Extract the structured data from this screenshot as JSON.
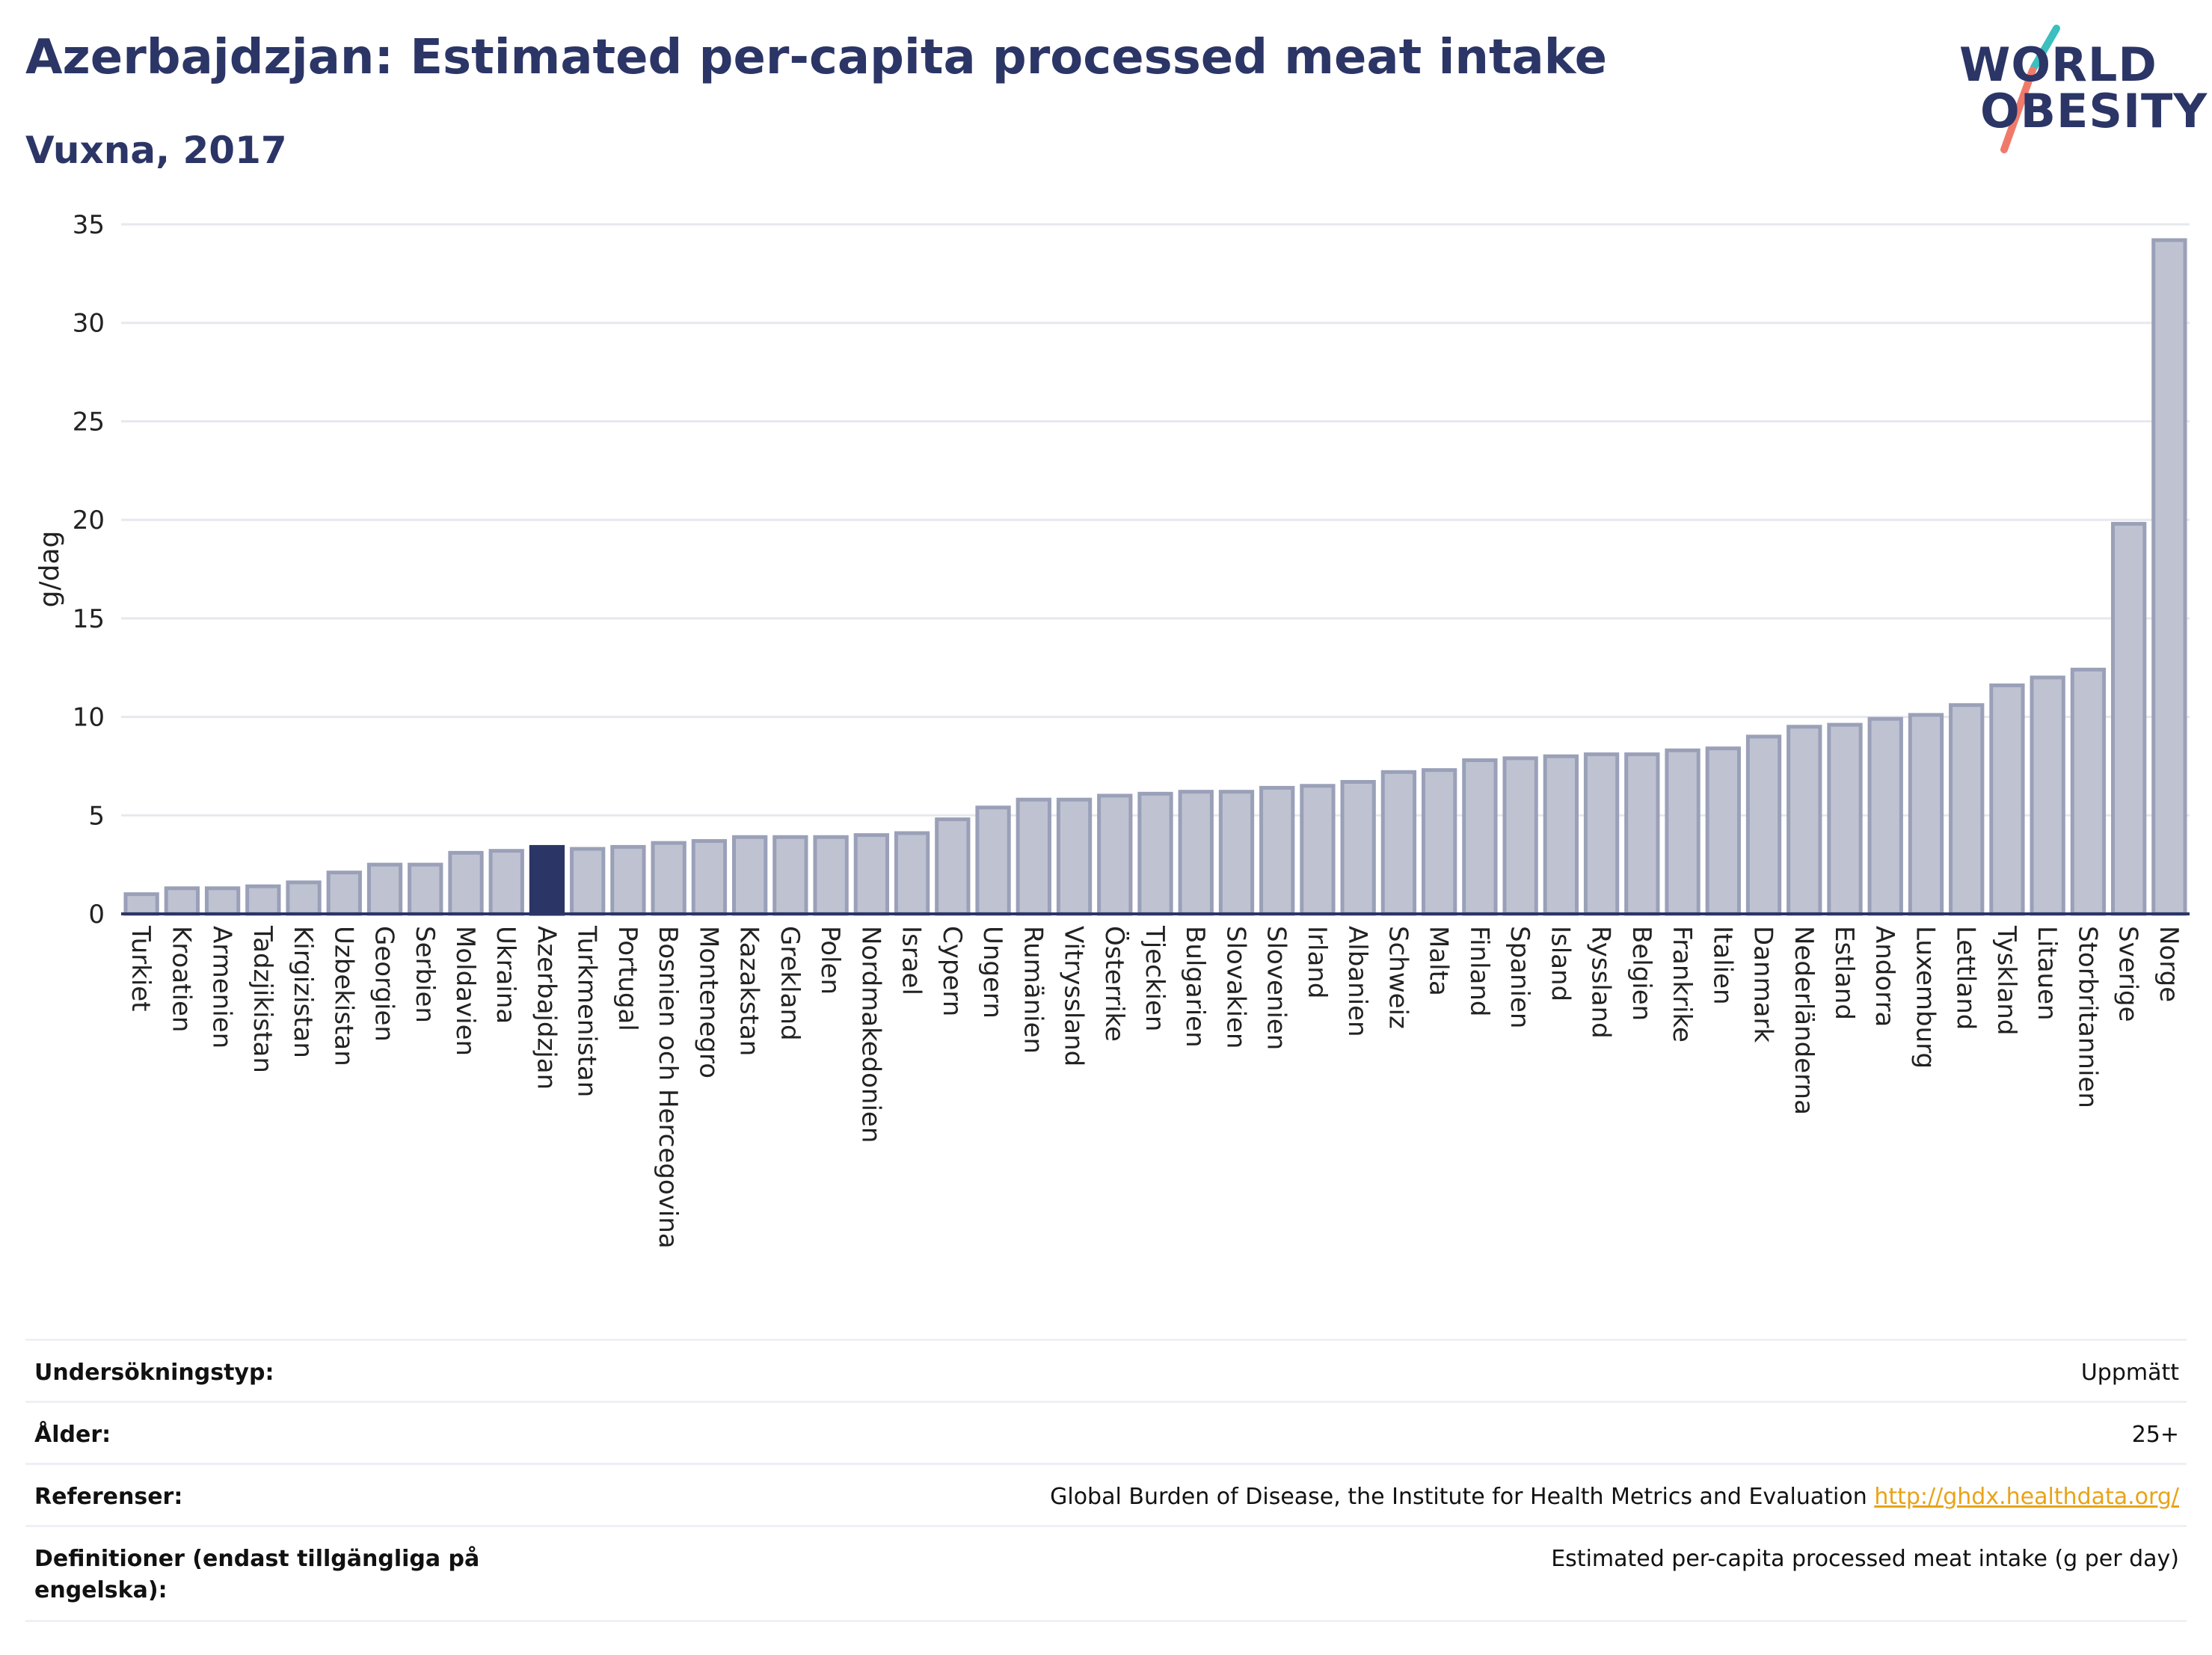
{
  "header": {
    "title": "Azerbajdzjan: Estimated per-capita processed meat intake",
    "subtitle": "Vuxna, 2017"
  },
  "logo": {
    "line1": "WORLD",
    "line2": "OBESITY",
    "slash_colors": [
      "#3bbfbf",
      "#f07a6a"
    ]
  },
  "colors": {
    "bar": "#bfc3d1",
    "bar_stroke": "#9aa0b8",
    "highlight": "#2b3566",
    "grid": "#e6e8ee"
  },
  "chart_data": {
    "type": "bar",
    "ylabel": "g/dag",
    "ylim": [
      0,
      35
    ],
    "yticks": [
      0,
      5,
      10,
      15,
      20,
      25,
      30,
      35
    ],
    "highlight": "Azerbajdzjan",
    "grid": true,
    "categories": [
      "Turkiet",
      "Kroatien",
      "Armenien",
      "Tadzjikistan",
      "Kirgizistan",
      "Uzbekistan",
      "Georgien",
      "Serbien",
      "Moldavien",
      "Ukraina",
      "Azerbajdzjan",
      "Turkmenistan",
      "Portugal",
      "Bosnien och Hercegovina",
      "Montenegro",
      "Kazakstan",
      "Grekland",
      "Polen",
      "Nordmakedonien",
      "Israel",
      "Cypern",
      "Ungern",
      "Rumänien",
      "Vitryssland",
      "Österrike",
      "Tjeckien",
      "Bulgarien",
      "Slovakien",
      "Slovenien",
      "Irland",
      "Albanien",
      "Schweiz",
      "Malta",
      "Finland",
      "Spanien",
      "Island",
      "Ryssland",
      "Belgien",
      "Frankrike",
      "Italien",
      "Danmark",
      "Nederländerna",
      "Estland",
      "Andorra",
      "Luxemburg",
      "Lettland",
      "Tyskland",
      "Litauen",
      "Storbritannien",
      "Sverige",
      "Norge"
    ],
    "values": [
      1.0,
      1.3,
      1.3,
      1.4,
      1.6,
      2.1,
      2.5,
      2.5,
      3.1,
      3.2,
      3.4,
      3.3,
      3.4,
      3.6,
      3.7,
      3.9,
      3.9,
      3.9,
      4.0,
      4.1,
      4.8,
      5.4,
      5.8,
      5.8,
      6.0,
      6.1,
      6.2,
      6.2,
      6.4,
      6.5,
      6.7,
      7.2,
      7.3,
      7.8,
      7.9,
      8.0,
      8.1,
      8.1,
      8.3,
      8.4,
      9.0,
      9.5,
      9.6,
      9.9,
      10.1,
      10.6,
      11.6,
      12.0,
      12.4,
      19.8,
      34.2
    ]
  },
  "info": {
    "rows": [
      {
        "label": "Undersökningstyp:",
        "value": "Uppmätt"
      },
      {
        "label": "Ålder:",
        "value": "25+"
      },
      {
        "label": "Referenser:",
        "value": "Global Burden of Disease, the Institute for Health Metrics and Evaluation",
        "link": "http://ghdx.healthdata.org/"
      },
      {
        "label": "Definitioner (endast tillgängliga på engelska):",
        "value": "Estimated per-capita processed meat intake (g per day)"
      }
    ]
  }
}
